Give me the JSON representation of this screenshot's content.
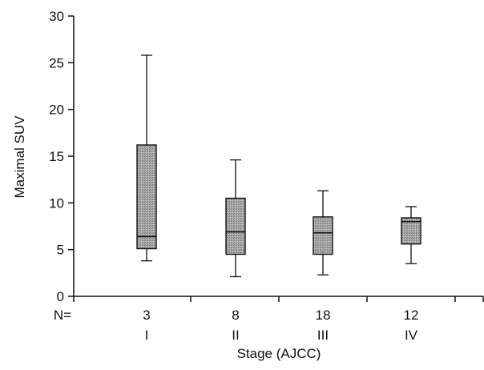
{
  "chart_data": {
    "type": "boxplot",
    "title": "",
    "xlabel": "Stage (AJCC)",
    "ylabel": "Maximal SUV",
    "ylim": [
      0,
      30
    ],
    "yticks": [
      "0",
      "5",
      "10",
      "15",
      "20",
      "25",
      "30"
    ],
    "n_prefix": "N=",
    "grid": false,
    "categories": [
      {
        "label": "I",
        "n": "3",
        "min": 3.8,
        "q1": 5.1,
        "median": 6.4,
        "q3": 16.2,
        "max": 25.8
      },
      {
        "label": "II",
        "n": "8",
        "min": 2.1,
        "q1": 4.5,
        "median": 6.9,
        "q3": 10.5,
        "max": 14.6
      },
      {
        "label": "III",
        "n": "18",
        "min": 2.3,
        "q1": 4.5,
        "median": 6.8,
        "q3": 8.5,
        "max": 11.3
      },
      {
        "label": "IV",
        "n": "12",
        "min": 3.5,
        "q1": 5.6,
        "median": 8.0,
        "q3": 8.4,
        "max": 9.6
      }
    ],
    "colors": {
      "box_fill": "#9a9a9a",
      "stroke": "#111111"
    }
  }
}
